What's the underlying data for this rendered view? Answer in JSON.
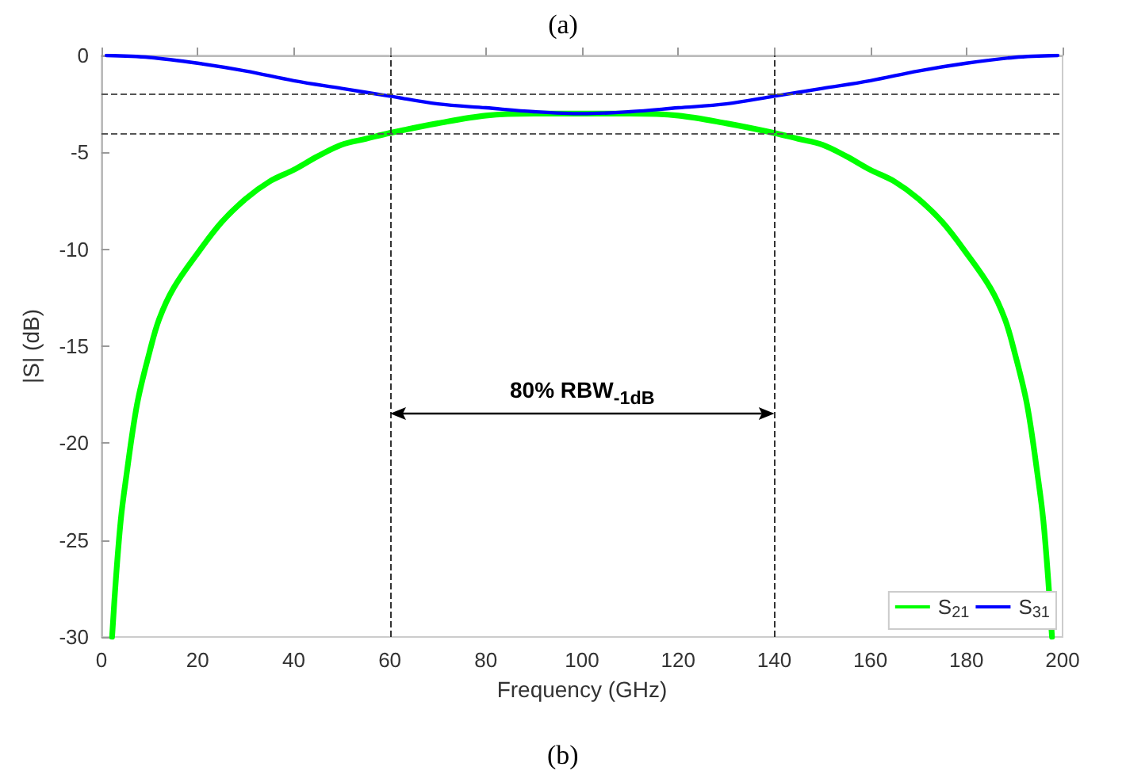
{
  "chart_data": {
    "type": "line",
    "title": "(a)",
    "xlabel": "Frequency (GHz)",
    "ylabel": "|S| (dB)",
    "xlim": [
      0,
      200
    ],
    "xticks": [
      0,
      20,
      40,
      60,
      80,
      100,
      120,
      140,
      160,
      180,
      200
    ],
    "ylim": [
      -30,
      0
    ],
    "yticks": [
      -30,
      -25,
      -20,
      -15,
      -10,
      -5,
      0
    ],
    "grid": false,
    "legend": "bottom right",
    "marker": "none",
    "line_style": "solid",
    "series": [
      {
        "name": "S$_{21}$",
        "color": "#00ff00",
        "x": [
          2.2,
          3,
          4,
          5,
          7.4,
          10,
          12,
          15,
          20,
          25,
          30,
          35,
          40,
          45,
          50,
          55,
          60,
          70,
          80,
          90,
          100,
          110,
          120,
          130,
          140,
          145,
          150,
          155,
          160,
          165,
          170,
          175,
          180,
          185,
          188,
          190,
          192.6,
          195,
          196,
          197,
          197.8
        ],
        "values": [
          -30,
          -27,
          -24,
          -22,
          -18,
          -15.3,
          -13.6,
          -12,
          -10.2,
          -8.6,
          -7.4,
          -6.5,
          -5.9,
          -5.2,
          -4.6,
          -4.3,
          -4.0,
          -3.5,
          -3.1,
          -3.0,
          -3.0,
          -3.0,
          -3.1,
          -3.5,
          -4.0,
          -4.3,
          -4.6,
          -5.2,
          -5.9,
          -6.5,
          -7.4,
          -8.6,
          -10.2,
          -12,
          -13.6,
          -15.3,
          -18,
          -22,
          -24,
          -27,
          -30
        ]
      },
      {
        "name": "S$_{31}$",
        "color": "#0000ff",
        "x": [
          1,
          10,
          20,
          30,
          40,
          50,
          60,
          70,
          80,
          90,
          100,
          110,
          120,
          130,
          140,
          150,
          160,
          170,
          180,
          190,
          199
        ],
        "values": [
          0,
          -0.1,
          -0.4,
          -0.8,
          -1.3,
          -1.7,
          -2.1,
          -2.5,
          -2.7,
          -2.9,
          -3.0,
          -2.9,
          -2.7,
          -2.5,
          -2.1,
          -1.7,
          -1.3,
          -0.8,
          -0.4,
          -0.1,
          0
        ]
      }
    ],
    "ref_lines": [
      {
        "axis": "x",
        "value": 60,
        "line_style": "dashed",
        "color": "#333333"
      },
      {
        "axis": "x",
        "value": 140,
        "line_style": "dashed",
        "color": "#333333"
      },
      {
        "axis": "y",
        "value": -2,
        "line_style": "dashed",
        "color": "#555555"
      },
      {
        "axis": "y",
        "value": -4,
        "line_style": "dashed",
        "color": "#555555"
      }
    ],
    "annotations": [
      "80% RBW$_{-1dB}$",
      "(b)"
    ]
  }
}
